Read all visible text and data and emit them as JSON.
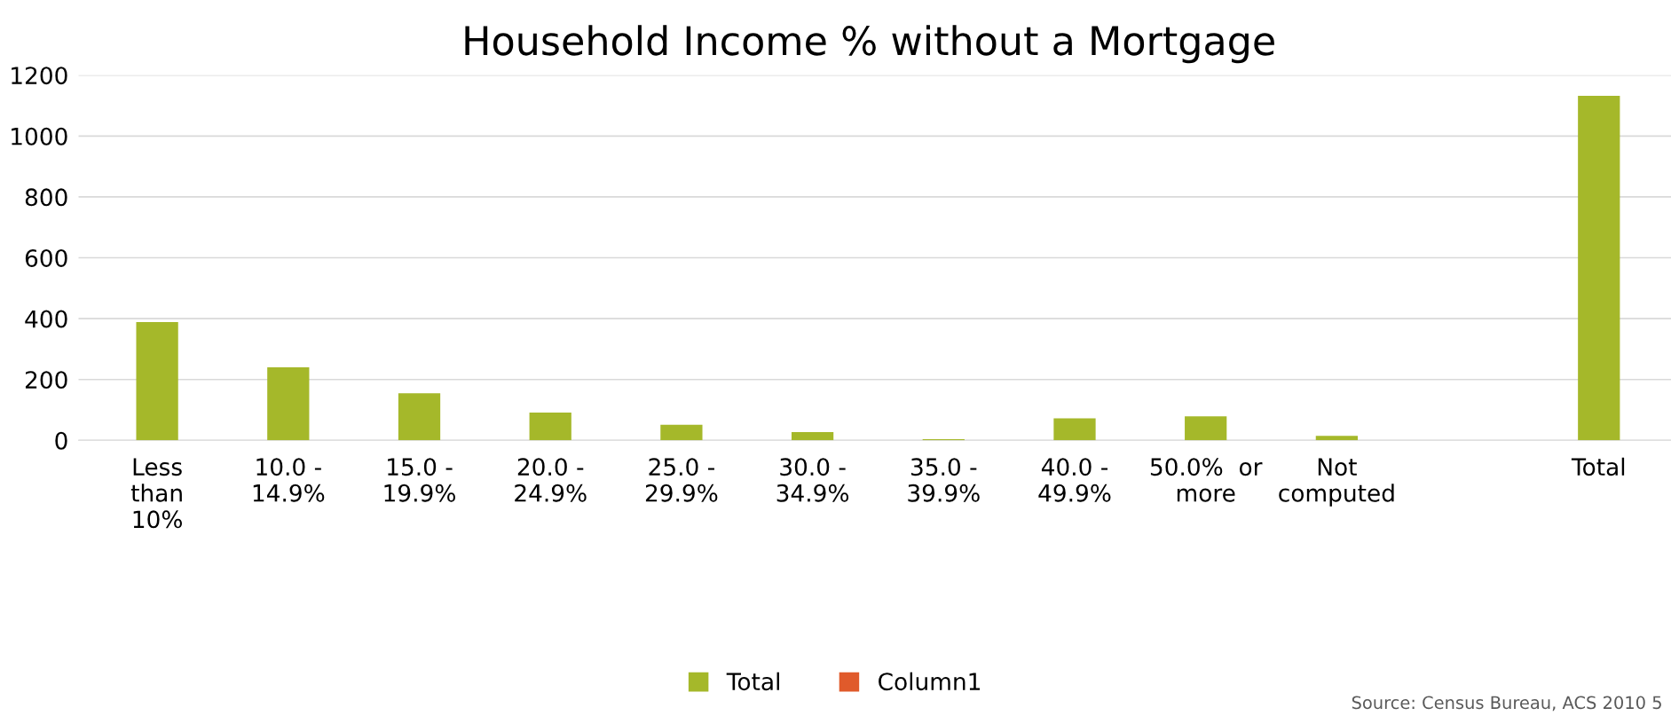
{
  "chart_data": {
    "type": "bar",
    "title": "Household Income % without a Mortgage",
    "categories": [
      "Less\nthan\n10%",
      "10.0 -\n14.9%",
      "15.0 -\n19.9%",
      "20.0 -\n24.9%",
      "25.0 -\n29.9%",
      "30.0 -\n34.9%",
      "35.0 -\n39.9%",
      "40.0 -\n49.9%",
      "50.0%  or\nmore",
      "Not\ncomputed",
      null,
      "Total"
    ],
    "series": [
      {
        "name": "Total",
        "color": "#a5b82a",
        "values": [
          389,
          240,
          155,
          91,
          51,
          27,
          4,
          72,
          79,
          15,
          null,
          1132
        ]
      },
      {
        "name": "Column1",
        "color": "#e05a2b",
        "values": [
          null,
          null,
          null,
          null,
          null,
          null,
          null,
          null,
          null,
          null,
          null,
          null
        ]
      }
    ],
    "ylim": [
      0,
      1200
    ],
    "yticks": [
      0,
      200,
      400,
      600,
      800,
      1000,
      1200
    ],
    "grid": "y",
    "legend": "bottom",
    "annotations": [
      "Source: Census Bureau, ACS 2010 5"
    ]
  }
}
